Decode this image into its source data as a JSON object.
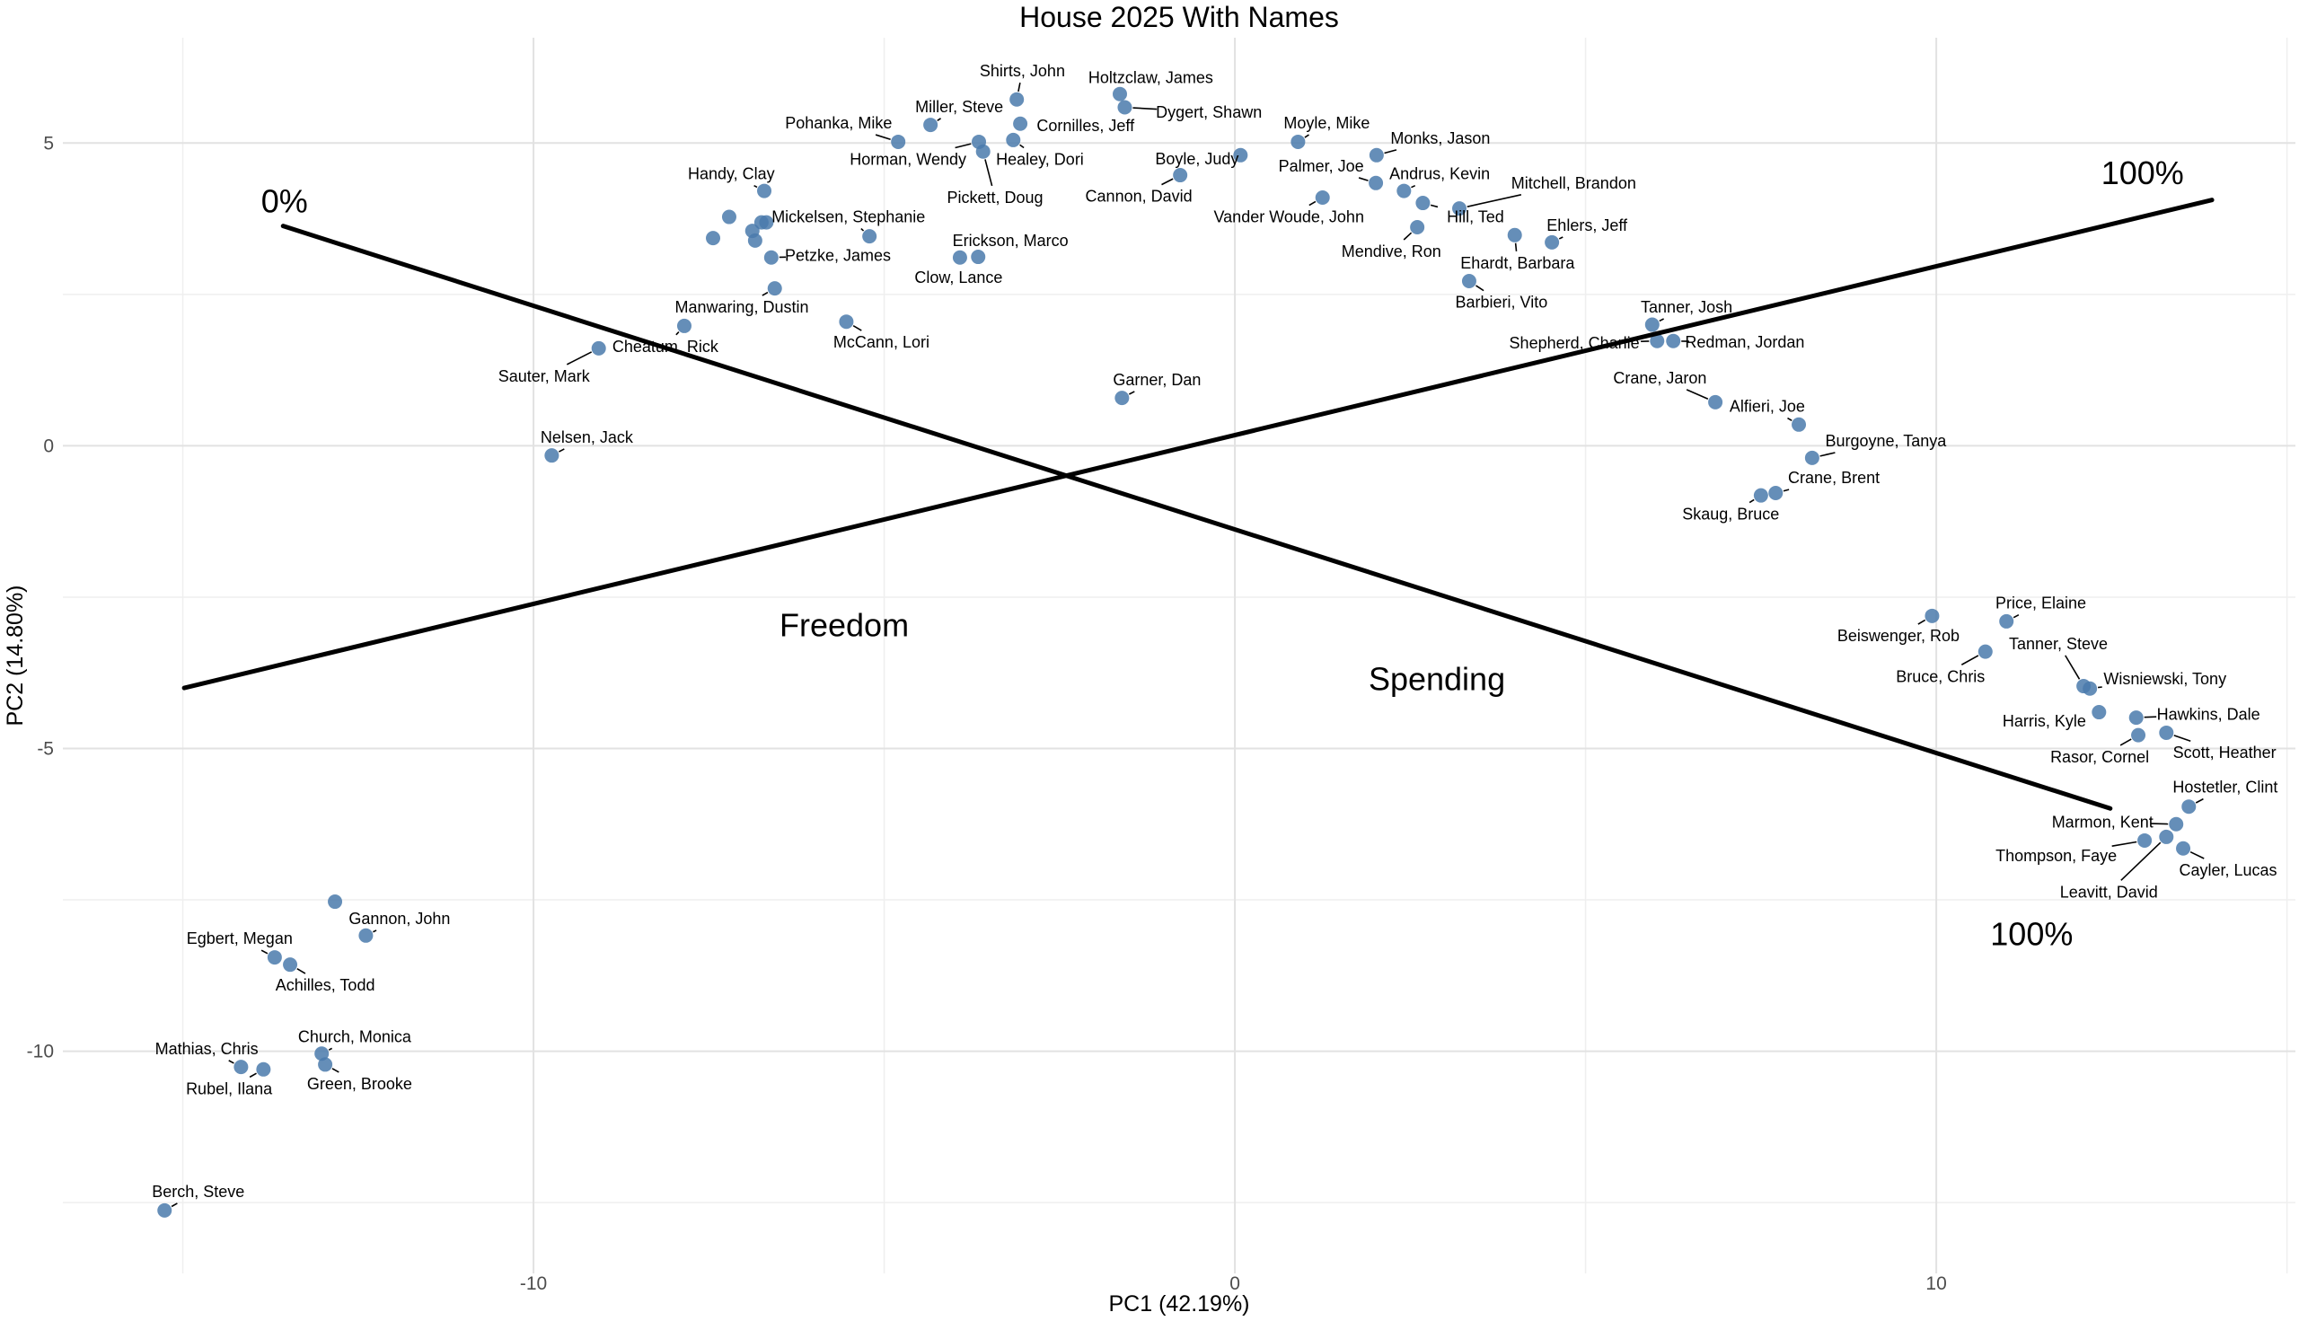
{
  "chart_data": {
    "type": "scatter",
    "title": "House 2025 With Names",
    "xlabel": "PC1 (42.19%)",
    "ylabel": "PC2 (14.80%)",
    "xlim": [
      -16.71,
      15.12
    ],
    "ylim": [
      -13.67,
      6.74
    ],
    "xticks": [
      -10,
      0,
      10
    ],
    "yticks": [
      5,
      0,
      -5,
      -10
    ],
    "xticks_minor": [
      -15,
      -5,
      5,
      15
    ],
    "yticks_minor": [
      2.5,
      -2.5,
      -7.5,
      -12.5
    ],
    "grid": true,
    "legend": "none",
    "point_color": "#4a7aab",
    "point_opacity": 0.85,
    "point_radius": 8,
    "points": [
      {
        "name": "Shirts, John",
        "x": -3.11,
        "y": 5.72,
        "lx": -3.03,
        "ly": 6.19
      },
      {
        "name": "Holtzclaw, James",
        "x": -1.64,
        "y": 5.81,
        "lx": -1.2,
        "ly": 6.08
      },
      {
        "name": "Dygert, Shawn",
        "x": -1.57,
        "y": 5.59,
        "lx": -0.37,
        "ly": 5.51
      },
      {
        "name": "Miller, Steve",
        "x": -4.34,
        "y": 5.3,
        "lx": -3.93,
        "ly": 5.6
      },
      {
        "name": "Pohanka, Mike",
        "x": -4.8,
        "y": 5.02,
        "lx": -5.65,
        "ly": 5.33
      },
      {
        "name": "Cornilles, Jeff",
        "x": -3.06,
        "y": 5.32,
        "lx": -2.13,
        "ly": 5.29
      },
      {
        "name": "Horman, Wendy",
        "x": -3.65,
        "y": 5.02,
        "lx": -4.66,
        "ly": 4.73
      },
      {
        "name": "Pickett, Doug",
        "x": -3.59,
        "y": 4.86,
        "lx": -3.42,
        "ly": 4.1
      },
      {
        "name": "Healey, Dori",
        "x": -3.16,
        "y": 5.05,
        "lx": -2.78,
        "ly": 4.73
      },
      {
        "name": "Boyle, Judy",
        "x": 0.08,
        "y": 4.8,
        "lx": -0.54,
        "ly": 4.74
      },
      {
        "name": "Cannon, David",
        "x": -0.78,
        "y": 4.47,
        "lx": -1.37,
        "ly": 4.12
      },
      {
        "name": "Moyle, Mike",
        "x": 0.9,
        "y": 5.02,
        "lx": 1.31,
        "ly": 5.33
      },
      {
        "name": "Monks, Jason",
        "x": 2.02,
        "y": 4.8,
        "lx": 2.93,
        "ly": 5.08
      },
      {
        "name": "Palmer, Joe",
        "x": 2.01,
        "y": 4.34,
        "lx": 1.23,
        "ly": 4.62
      },
      {
        "name": "Andrus, Kevin",
        "x": 2.41,
        "y": 4.21,
        "lx": 2.92,
        "ly": 4.49
      },
      {
        "name": "Hill, Ted",
        "x": 2.68,
        "y": 4.01,
        "lx": 3.43,
        "ly": 3.78
      },
      {
        "name": "Mitchell, Brandon",
        "x": 3.2,
        "y": 3.92,
        "lx": 4.83,
        "ly": 4.34
      },
      {
        "name": "Vander Woude, John",
        "x": 1.25,
        "y": 4.1,
        "lx": 0.77,
        "ly": 3.78
      },
      {
        "name": "Mendive, Ron",
        "x": 2.6,
        "y": 3.61,
        "lx": 2.23,
        "ly": 3.21
      },
      {
        "name": "Ehardt, Barbara",
        "x": 3.99,
        "y": 3.48,
        "lx": 4.03,
        "ly": 3.02
      },
      {
        "name": "Ehlers, Jeff",
        "x": 4.52,
        "y": 3.36,
        "lx": 5.02,
        "ly": 3.64
      },
      {
        "name": "Barbieri, Vito",
        "x": 3.34,
        "y": 2.72,
        "lx": 3.8,
        "ly": 2.37
      },
      {
        "name": "Handy, Clay",
        "x": -6.71,
        "y": 4.21,
        "lx": -7.18,
        "ly": 4.49
      },
      {
        "name": "Mickelsen, Stephanie",
        "x": -5.21,
        "y": 3.46,
        "lx": -5.51,
        "ly": 3.78
      },
      {
        "name": "Petzke, James",
        "x": -6.61,
        "y": 3.11,
        "lx": -5.66,
        "ly": 3.14
      },
      {
        "name": "Erickson, Marco",
        "x": -3.66,
        "y": 3.12,
        "lx": -3.2,
        "ly": 3.39
      },
      {
        "name": "Clow, Lance",
        "x": -3.92,
        "y": 3.11,
        "lx": -3.94,
        "ly": 2.78
      },
      {
        "name": "Manwaring, Dustin",
        "x": -6.56,
        "y": 2.6,
        "lx": -7.03,
        "ly": 2.29
      },
      {
        "name": "McCann, Lori",
        "x": -5.54,
        "y": 2.05,
        "lx": -5.04,
        "ly": 1.71
      },
      {
        "name": "Cheatum, Rick",
        "x": -7.85,
        "y": 1.98,
        "lx": -8.12,
        "ly": 1.64
      },
      {
        "name": "Sauter, Mark",
        "x": -9.07,
        "y": 1.61,
        "lx": -9.85,
        "ly": 1.15
      },
      {
        "name": "Nelsen, Jack",
        "x": -9.74,
        "y": -0.16,
        "lx": -9.24,
        "ly": 0.14
      },
      {
        "name": "Garner, Dan",
        "x": -1.61,
        "y": 0.79,
        "lx": -1.11,
        "ly": 1.09
      },
      {
        "name": "Tanner, Josh",
        "x": 5.95,
        "y": 2.0,
        "lx": 6.44,
        "ly": 2.29
      },
      {
        "name": "Shepherd, Charlie",
        "x": 6.02,
        "y": 1.73,
        "lx": 4.84,
        "ly": 1.7
      },
      {
        "name": "Redman, Jordan",
        "x": 6.25,
        "y": 1.73,
        "lx": 7.27,
        "ly": 1.71
      },
      {
        "name": "Crane, Jaron",
        "x": 6.85,
        "y": 0.72,
        "lx": 6.06,
        "ly": 1.12
      },
      {
        "name": "Alfieri, Joe",
        "x": 8.04,
        "y": 0.35,
        "lx": 7.59,
        "ly": 0.65
      },
      {
        "name": "Burgoyne, Tanya",
        "x": 8.23,
        "y": -0.2,
        "lx": 9.28,
        "ly": 0.08
      },
      {
        "name": "Crane, Brent",
        "x": 7.71,
        "y": -0.78,
        "lx": 8.54,
        "ly": -0.53
      },
      {
        "name": "Skaug, Bruce",
        "x": 7.5,
        "y": -0.82,
        "lx": 7.07,
        "ly": -1.13
      },
      {
        "name": "Beiswenger, Rob",
        "x": 9.94,
        "y": -2.81,
        "lx": 9.46,
        "ly": -3.14
      },
      {
        "name": "Price, Elaine",
        "x": 11.0,
        "y": -2.9,
        "lx": 11.49,
        "ly": -2.6
      },
      {
        "name": "Bruce, Chris",
        "x": 10.7,
        "y": -3.4,
        "lx": 10.06,
        "ly": -3.81
      },
      {
        "name": "Tanner, Steve",
        "x": 12.1,
        "y": -3.97,
        "lx": 11.74,
        "ly": -3.27
      },
      {
        "name": "Wisniewski, Tony",
        "x": 12.19,
        "y": -4.01,
        "lx": 13.26,
        "ly": -3.85
      },
      {
        "name": "Harris, Kyle",
        "x": 12.32,
        "y": -4.4,
        "lx": 11.54,
        "ly": -4.55
      },
      {
        "name": "Hawkins, Dale",
        "x": 12.85,
        "y": -4.49,
        "lx": 13.88,
        "ly": -4.44
      },
      {
        "name": "Rasor, Cornel",
        "x": 12.88,
        "y": -4.78,
        "lx": 12.33,
        "ly": -5.14
      },
      {
        "name": "Scott, Heather",
        "x": 13.28,
        "y": -4.74,
        "lx": 14.11,
        "ly": -5.07
      },
      {
        "name": "Hostetler, Clint",
        "x": 13.6,
        "y": -5.96,
        "lx": 14.12,
        "ly": -5.64
      },
      {
        "name": "Marmon, Kent",
        "x": 13.42,
        "y": -6.25,
        "lx": 12.37,
        "ly": -6.22
      },
      {
        "name": "Thompson, Faye",
        "x": 12.97,
        "y": -6.52,
        "lx": 11.71,
        "ly": -6.77
      },
      {
        "name": "Leavitt, David",
        "x": 13.28,
        "y": -6.46,
        "lx": 12.46,
        "ly": -7.37
      },
      {
        "name": "Cayler, Lucas",
        "x": 13.52,
        "y": -6.65,
        "lx": 14.16,
        "ly": -7.01
      },
      {
        "name": "Gannon, John",
        "x": -12.39,
        "y": -8.09,
        "lx": -11.91,
        "ly": -7.81
      },
      {
        "name": "Egbert, Megan",
        "x": -13.69,
        "y": -8.45,
        "lx": -14.19,
        "ly": -8.14
      },
      {
        "name": "Achilles, Todd",
        "x": -13.47,
        "y": -8.57,
        "lx": -12.97,
        "ly": -8.91
      },
      {
        "name": "Church, Monica",
        "x": -13.02,
        "y": -10.04,
        "lx": -12.55,
        "ly": -9.76
      },
      {
        "name": "Mathias, Chris",
        "x": -14.17,
        "y": -10.26,
        "lx": -14.66,
        "ly": -9.96
      },
      {
        "name": "Rubel, Ilana",
        "x": -13.85,
        "y": -10.3,
        "lx": -14.34,
        "ly": -10.62
      },
      {
        "name": "Green, Brooke",
        "x": -12.97,
        "y": -10.22,
        "lx": -12.48,
        "ly": -10.54
      },
      {
        "name": "Berch, Steve",
        "x": -15.26,
        "y": -12.63,
        "lx": -14.78,
        "ly": -12.32
      }
    ],
    "unlabeled_points": [
      {
        "x": -7.21,
        "y": 3.78
      },
      {
        "x": -7.44,
        "y": 3.43
      },
      {
        "x": -6.75,
        "y": 3.69
      },
      {
        "x": -6.68,
        "y": 3.69
      },
      {
        "x": -6.88,
        "y": 3.55
      },
      {
        "x": -6.84,
        "y": 3.39
      },
      {
        "x": -12.83,
        "y": -7.53
      }
    ],
    "lines": [
      {
        "id": "freedom-line",
        "x1": -14.98,
        "y1": -4.0,
        "x2": 13.93,
        "y2": 4.06,
        "label": "Freedom",
        "label_x": -5.57,
        "label_y": -2.97,
        "color": "#000000",
        "width": 5
      },
      {
        "id": "spending-line",
        "x1": -13.57,
        "y1": 3.63,
        "x2": 12.48,
        "y2": -5.99,
        "label": "Spending",
        "label_x": 2.88,
        "label_y": -3.86,
        "color": "#000000",
        "width": 5
      }
    ],
    "annotations": [
      {
        "text": "0%",
        "x": -13.55,
        "y": 4.03
      },
      {
        "text": "100%",
        "x": 12.94,
        "y": 4.5
      },
      {
        "text": "100%",
        "x": 11.36,
        "y": -8.07
      }
    ],
    "grid_major_color": "#e2e2e2",
    "grid_minor_color": "#efefef",
    "tick_label_color": "#4d4d4d"
  }
}
